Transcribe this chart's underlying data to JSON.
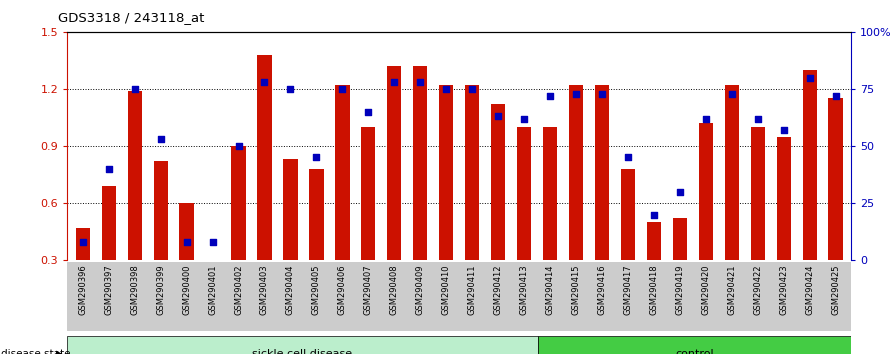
{
  "title": "GDS3318 / 243118_at",
  "samples": [
    "GSM290396",
    "GSM290397",
    "GSM290398",
    "GSM290399",
    "GSM290400",
    "GSM290401",
    "GSM290402",
    "GSM290403",
    "GSM290404",
    "GSM290405",
    "GSM290406",
    "GSM290407",
    "GSM290408",
    "GSM290409",
    "GSM290410",
    "GSM290411",
    "GSM290412",
    "GSM290413",
    "GSM290414",
    "GSM290415",
    "GSM290416",
    "GSM290417",
    "GSM290418",
    "GSM290419",
    "GSM290420",
    "GSM290421",
    "GSM290422",
    "GSM290423",
    "GSM290424",
    "GSM290425"
  ],
  "transformed_count": [
    0.47,
    0.69,
    1.19,
    0.82,
    0.6,
    0.3,
    0.9,
    1.38,
    0.83,
    0.78,
    1.22,
    1.0,
    1.32,
    1.32,
    1.22,
    1.22,
    1.12,
    1.0,
    1.0,
    1.22,
    1.22,
    0.78,
    0.5,
    0.52,
    1.02,
    1.22,
    1.0,
    0.95,
    1.3,
    1.15
  ],
  "percentile_rank": [
    8,
    40,
    75,
    53,
    8,
    8,
    50,
    78,
    75,
    45,
    75,
    65,
    78,
    78,
    75,
    75,
    63,
    62,
    72,
    73,
    73,
    45,
    20,
    30,
    62,
    73,
    62,
    57,
    80,
    72
  ],
  "sickle_count": 18,
  "control_count": 12,
  "ylim_left": [
    0.3,
    1.5
  ],
  "ylim_right": [
    0,
    100
  ],
  "yticks_left": [
    0.3,
    0.6,
    0.9,
    1.2,
    1.5
  ],
  "yticks_right": [
    0,
    25,
    50,
    75,
    100
  ],
  "ytick_labels_right": [
    "0",
    "25",
    "50",
    "75",
    "100%"
  ],
  "bar_color": "#cc1100",
  "dot_color": "#0000bb",
  "sickle_color": "#bbeecc",
  "control_color": "#44cc44",
  "tick_bg_color": "#cccccc",
  "grid_color": "black"
}
